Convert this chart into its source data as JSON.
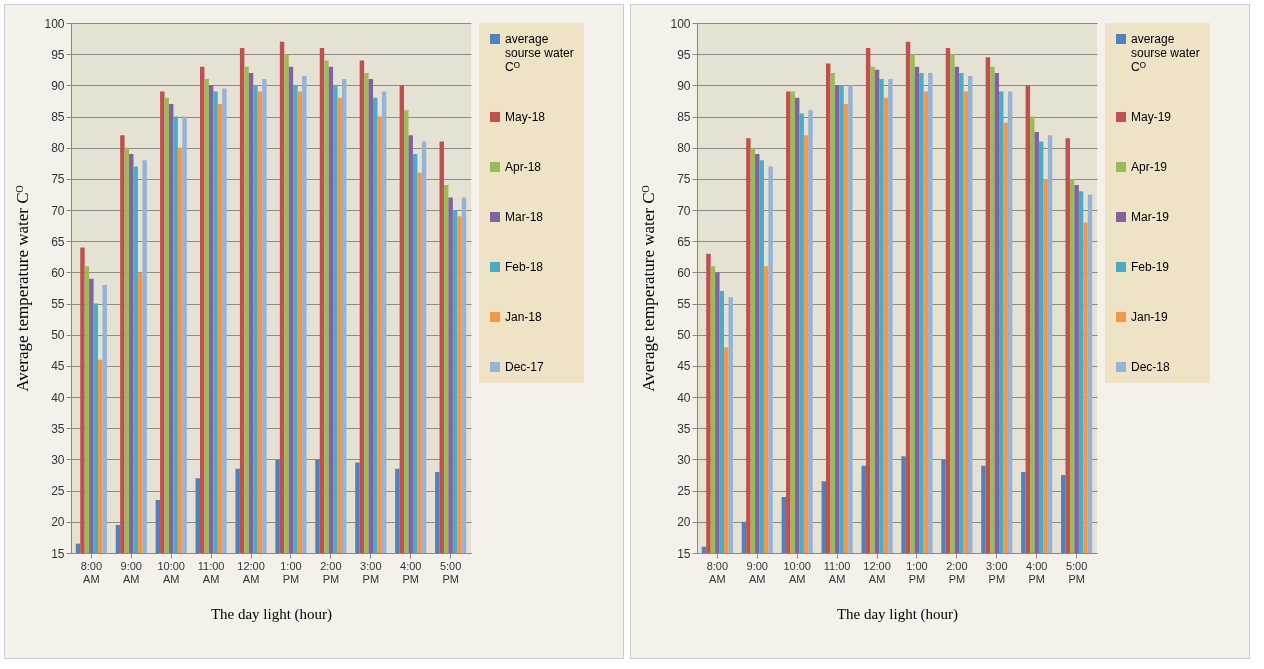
{
  "chart_data": [
    {
      "type": "bar",
      "xlabel": "The day light (hour)",
      "ylabel": "Average  temperature  water  Cᴼ",
      "categories": [
        "8:00 AM",
        "9:00 AM",
        "10:00 AM",
        "11:00 AM",
        "12:00 AM",
        "1:00 PM",
        "2:00 PM",
        "3:00 PM",
        "4:00 PM",
        "5:00 PM"
      ],
      "ylim": [
        15,
        100
      ],
      "yticks": [
        15,
        20,
        25,
        30,
        35,
        40,
        45,
        50,
        55,
        60,
        65,
        70,
        75,
        80,
        85,
        90,
        95,
        100
      ],
      "grid": "y",
      "legend": "right",
      "series": [
        {
          "name": "average sourse water Cᴼ",
          "color": "#4f81bd",
          "values": [
            16.5,
            19.5,
            23.5,
            27,
            28.5,
            30,
            30,
            29.5,
            28.5,
            28
          ]
        },
        {
          "name": "May-18",
          "color": "#c0504d",
          "values": [
            64,
            82,
            89,
            93,
            96,
            97,
            96,
            94,
            90,
            81
          ]
        },
        {
          "name": "Apr-18",
          "color": "#9bbb59",
          "values": [
            61,
            80,
            88,
            91,
            93,
            95,
            94,
            92,
            86,
            74
          ]
        },
        {
          "name": "Mar-18",
          "color": "#8064a2",
          "values": [
            59,
            79,
            87,
            90,
            92,
            93,
            93,
            91,
            82,
            72
          ]
        },
        {
          "name": "Feb-18",
          "color": "#4bacc6",
          "values": [
            55,
            77,
            85,
            89,
            90,
            90,
            90,
            88,
            79,
            70
          ]
        },
        {
          "name": "Jan-18",
          "color": "#f79646",
          "values": [
            46,
            60,
            80,
            87,
            89,
            89,
            88,
            85,
            76,
            69
          ]
        },
        {
          "name": "Dec-17",
          "color": "#95b3d7",
          "values": [
            58,
            78,
            85,
            89.5,
            91,
            91.5,
            91,
            89,
            81,
            72
          ]
        }
      ]
    },
    {
      "type": "bar",
      "xlabel": "The day light (hour)",
      "ylabel": "Average  temperature  water  Cᴼ",
      "categories": [
        "8:00 AM",
        "9:00 AM",
        "10:00 AM",
        "11:00 AM",
        "12:00 AM",
        "1:00 PM",
        "2:00 PM",
        "3:00 PM",
        "4:00 PM",
        "5:00 PM"
      ],
      "ylim": [
        15,
        100
      ],
      "yticks": [
        15,
        20,
        25,
        30,
        35,
        40,
        45,
        50,
        55,
        60,
        65,
        70,
        75,
        80,
        85,
        90,
        95,
        100
      ],
      "grid": "y",
      "legend": "right",
      "series": [
        {
          "name": "average sourse water Cᴼ",
          "color": "#4f81bd",
          "values": [
            16,
            20,
            24,
            26.5,
            29,
            30.5,
            30,
            29,
            28,
            27.5
          ]
        },
        {
          "name": "May-19",
          "color": "#c0504d",
          "values": [
            63,
            81.5,
            89,
            93.5,
            96,
            97,
            96,
            94.5,
            90,
            81.5
          ]
        },
        {
          "name": "Apr-19",
          "color": "#9bbb59",
          "values": [
            61,
            80,
            89,
            92,
            93,
            95,
            95,
            93,
            85,
            75
          ]
        },
        {
          "name": "Mar-19",
          "color": "#8064a2",
          "values": [
            60,
            79,
            88,
            90,
            92.5,
            93,
            93,
            92,
            82.5,
            74
          ]
        },
        {
          "name": "Feb-19",
          "color": "#4bacc6",
          "values": [
            57,
            78,
            85.5,
            90,
            91,
            92,
            92,
            89,
            81,
            73
          ]
        },
        {
          "name": "Jan-19",
          "color": "#f79646",
          "values": [
            48,
            61,
            82,
            87,
            88,
            89,
            89,
            84,
            75,
            68
          ]
        },
        {
          "name": "Dec-18",
          "color": "#95b3d7",
          "values": [
            56,
            77,
            86,
            90,
            91,
            92,
            91.5,
            89,
            82,
            72.5
          ]
        }
      ]
    }
  ]
}
